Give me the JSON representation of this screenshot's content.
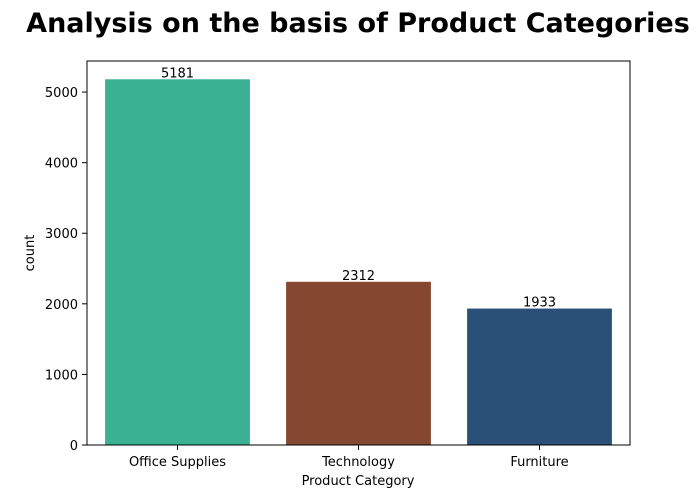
{
  "chart_data": {
    "type": "bar",
    "title": "Analysis on the basis of Product Categories",
    "xlabel": "Product Category",
    "ylabel": "count",
    "categories": [
      "Office Supplies",
      "Technology",
      "Furniture"
    ],
    "values": [
      5181,
      2312,
      1933
    ],
    "value_labels": [
      "5181",
      "2312",
      "1933"
    ],
    "colors": [
      "#3bb194",
      "#854730",
      "#2a5078"
    ],
    "ylim": [
      0,
      5440
    ],
    "yticks": [
      0,
      1000,
      2000,
      3000,
      4000,
      5000
    ],
    "ytick_labels": [
      "0",
      "1000",
      "2000",
      "3000",
      "4000",
      "5000"
    ],
    "grid": false,
    "legend": false
  }
}
